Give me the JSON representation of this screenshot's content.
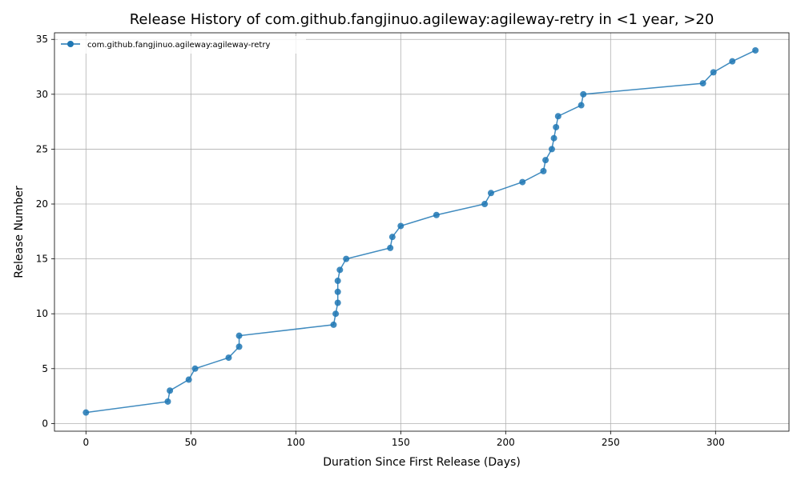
{
  "chart_data": {
    "type": "line",
    "title": "Release History of com.github.fangjinuo.agileway:agileway-retry in <1 year, >20",
    "xlabel": "Duration Since First Release (Days)",
    "ylabel": "Release Number",
    "xlim": [
      -15,
      335
    ],
    "ylim": [
      -0.7,
      35.6
    ],
    "xticks": [
      0,
      50,
      100,
      150,
      200,
      250,
      300
    ],
    "yticks": [
      0,
      5,
      10,
      15,
      20,
      25,
      30,
      35
    ],
    "grid": true,
    "legend_position": "top-left",
    "series": [
      {
        "name": "com.github.fangjinuo.agileway:agileway-retry",
        "color": "#1f77b4",
        "marker": "circle",
        "x": [
          0,
          39,
          40,
          49,
          52,
          68,
          73,
          73,
          118,
          119,
          120,
          120,
          120,
          121,
          124,
          145,
          146,
          150,
          167,
          190,
          193,
          208,
          218,
          219,
          222,
          223,
          224,
          225,
          236,
          237,
          294,
          299,
          308,
          319
        ],
        "y": [
          1,
          2,
          3,
          4,
          5,
          6,
          7,
          8,
          9,
          10,
          11,
          12,
          13,
          14,
          15,
          16,
          17,
          18,
          19,
          20,
          21,
          22,
          23,
          24,
          25,
          26,
          27,
          28,
          29,
          30,
          31,
          32,
          33,
          34
        ]
      }
    ]
  }
}
